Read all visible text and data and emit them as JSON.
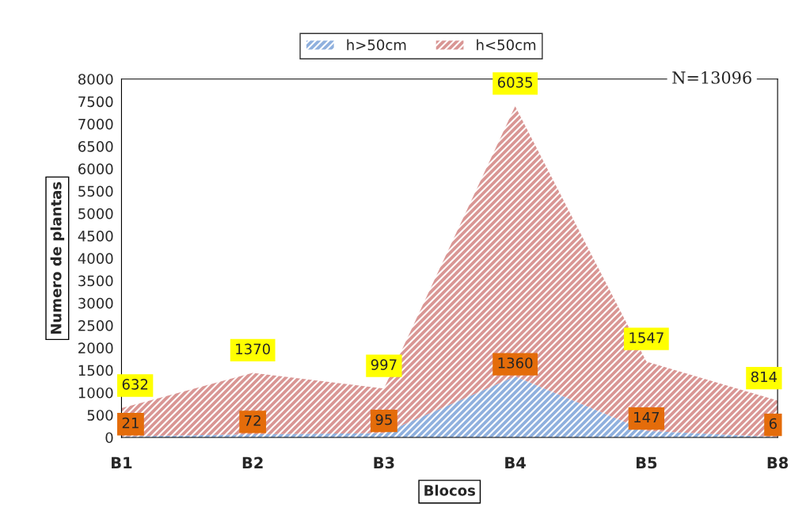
{
  "chart_data": {
    "type": "area",
    "stacked": true,
    "xlabel": "Blocos",
    "ylabel": "Numero de plantas",
    "categories": [
      "B1",
      "B2",
      "B3",
      "B4",
      "B5",
      "B8"
    ],
    "series": [
      {
        "name": "h>50cm",
        "color": "#8fb0de",
        "values": [
          21,
          72,
          95,
          1360,
          147,
          6
        ]
      },
      {
        "name": "h<50cm",
        "color": "#d99694",
        "values": [
          632,
          1370,
          997,
          6035,
          1547,
          814
        ]
      }
    ],
    "ylim": [
      0,
      8000
    ],
    "yticks": [
      0,
      500,
      1000,
      1500,
      2000,
      2500,
      3000,
      3500,
      4000,
      4500,
      5000,
      5500,
      6000,
      6500,
      7000,
      7500,
      8000
    ],
    "data_labels": true,
    "legend": "top",
    "grid": false,
    "annotations": [
      "N=13096"
    ]
  }
}
